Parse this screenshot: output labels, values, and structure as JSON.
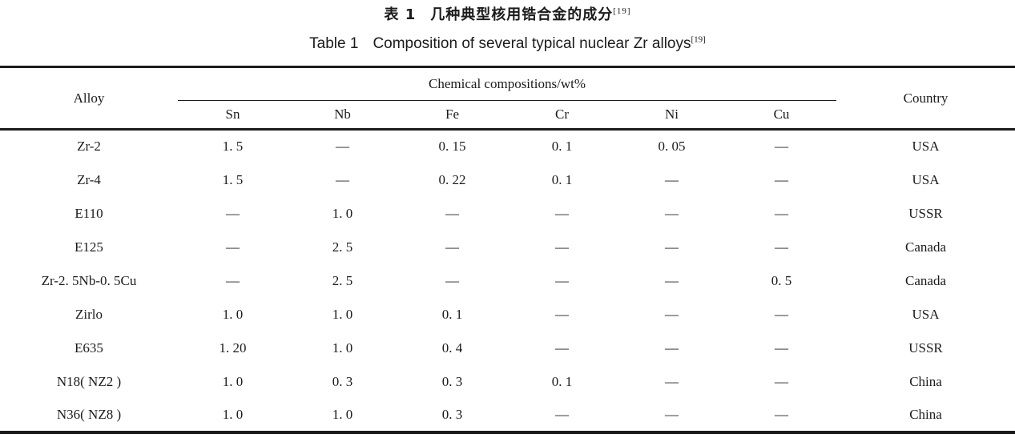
{
  "colors": {
    "background": "#ffffff",
    "text": "#1b1b1b",
    "rule": "#1c1c1c"
  },
  "titles": {
    "zh_prefix": "表 1",
    "zh_main": "几种典型核用锆合金的成分",
    "zh_ref": "[19]",
    "en_prefix": "Table 1",
    "en_main": "Composition of several typical nuclear Zr alloys",
    "en_ref": "[19]"
  },
  "table": {
    "header": {
      "alloy": "Alloy",
      "group": "Chemical compositions/wt%",
      "elements": [
        "Sn",
        "Nb",
        "Fe",
        "Cr",
        "Ni",
        "Cu"
      ],
      "country": "Country"
    },
    "rows": [
      {
        "alloy": "Zr-2",
        "values": [
          "1. 5",
          "—",
          "0. 15",
          "0. 1",
          "0. 05",
          "—"
        ],
        "country": "USA"
      },
      {
        "alloy": "Zr-4",
        "values": [
          "1. 5",
          "—",
          "0. 22",
          "0. 1",
          "—",
          "—"
        ],
        "country": "USA"
      },
      {
        "alloy": "E110",
        "values": [
          "—",
          "1. 0",
          "—",
          "—",
          "—",
          "—"
        ],
        "country": "USSR"
      },
      {
        "alloy": "E125",
        "values": [
          "—",
          "2. 5",
          "—",
          "—",
          "—",
          "—"
        ],
        "country": "Canada"
      },
      {
        "alloy": "Zr-2. 5Nb-0. 5Cu",
        "values": [
          "—",
          "2. 5",
          "—",
          "—",
          "—",
          "0. 5"
        ],
        "country": "Canada"
      },
      {
        "alloy": "Zirlo",
        "values": [
          "1. 0",
          "1. 0",
          "0. 1",
          "—",
          "—",
          "—"
        ],
        "country": "USA"
      },
      {
        "alloy": "E635",
        "values": [
          "1. 20",
          "1. 0",
          "0. 4",
          "—",
          "—",
          "—"
        ],
        "country": "USSR"
      },
      {
        "alloy": "N18( NZ2 )",
        "values": [
          "1. 0",
          "0. 3",
          "0. 3",
          "0. 1",
          "—",
          "—"
        ],
        "country": "China"
      },
      {
        "alloy": "N36( NZ8 )",
        "values": [
          "1. 0",
          "1. 0",
          "0. 3",
          "—",
          "—",
          "—"
        ],
        "country": "China"
      }
    ]
  }
}
